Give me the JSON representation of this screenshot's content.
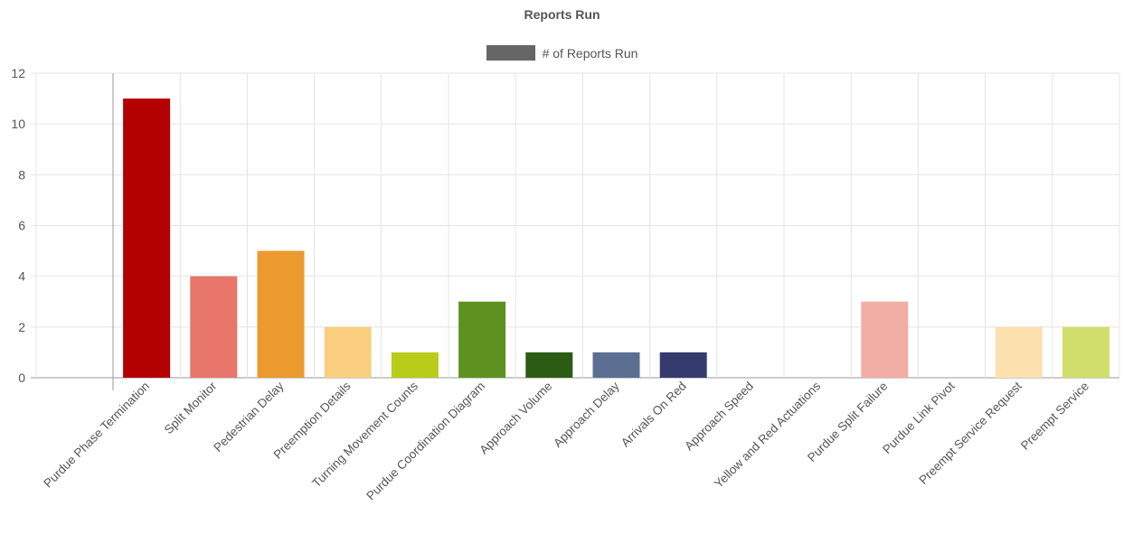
{
  "chart_data": {
    "type": "bar",
    "title": "Reports Run",
    "legend": {
      "position": "top-center",
      "label": "# of Reports Run",
      "color": "#666666"
    },
    "xlabel": "",
    "ylabel": "",
    "ylim": [
      0,
      12
    ],
    "yticks": [
      0,
      2,
      4,
      6,
      8,
      10,
      12
    ],
    "grid": true,
    "categories": [
      "Purdue Phase Termination",
      "Split Monitor",
      "Pedestrian Delay",
      "Preemption Details",
      "Turning Movement Counts",
      "Purdue Coordination Diagram",
      "Approach Volume",
      "Approach Delay",
      "Arrivals On Red",
      "Approach Speed",
      "Yellow and Red Actuations",
      "Purdue Split Failure",
      "Purdue Link Pivot",
      "Preempt Service Request",
      "Preempt Service"
    ],
    "series": [
      {
        "name": "# of Reports Run",
        "values": [
          11,
          4,
          5,
          2,
          1,
          3,
          1,
          1,
          1,
          0,
          0,
          3,
          0,
          2,
          2
        ],
        "colors": [
          "#b30000",
          "#e8766b",
          "#eb9a2e",
          "#f9cf7f",
          "#b9cc1b",
          "#5e9220",
          "#2c5c14",
          "#5d6e93",
          "#363b6f",
          "#cccccc",
          "#cccccc",
          "#f1aea5",
          "#cccccc",
          "#fce0ad",
          "#d1de6b"
        ]
      }
    ]
  }
}
